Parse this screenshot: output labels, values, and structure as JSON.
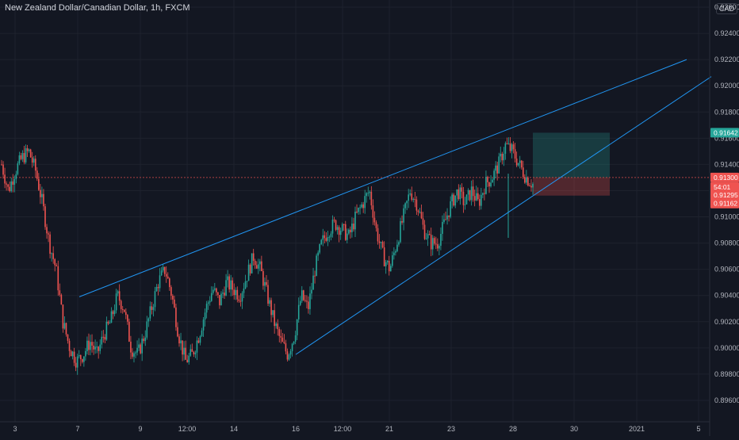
{
  "header": {
    "symbol_title": "New Zealand Dollar/Canadian Dollar, 1h, FXCM",
    "currency": "CAD"
  },
  "colors": {
    "background": "#131722",
    "up": "#26a69a",
    "down": "#ef5350",
    "trendline": "#2196f3",
    "target_zone": "#26a69a",
    "stop_zone": "#ef5350",
    "grid": "#1e222d"
  },
  "chart_data": {
    "type": "candlestick",
    "title": "New Zealand Dollar/Canadian Dollar, 1h, FXCM",
    "ylim": [
      0.895,
      0.927
    ],
    "y_ticks": [
      "0.92600",
      "0.92400",
      "0.92200",
      "0.92000",
      "0.91800",
      "0.91600",
      "0.91400",
      "0.91200",
      "0.91000",
      "0.90800",
      "0.90600",
      "0.90400",
      "0.90200",
      "0.90000",
      "0.89800",
      "0.89600"
    ],
    "x_ticks": [
      "3",
      "7",
      "9",
      "12:00",
      "14",
      "16",
      "12:00",
      "21",
      "23",
      "28",
      "30",
      "2021",
      "5"
    ],
    "grid": true,
    "series": [
      {
        "kind": "price_path",
        "close_values": [
          0.914,
          0.912,
          0.9135,
          0.9145,
          0.915,
          0.9135,
          0.911,
          0.908,
          0.906,
          0.902,
          0.9,
          0.899,
          0.8995,
          0.9005,
          0.8995,
          0.901,
          0.902,
          0.904,
          0.903,
          0.9,
          0.8995,
          0.901,
          0.903,
          0.905,
          0.906,
          0.904,
          0.901,
          0.899,
          0.8995,
          0.901,
          0.903,
          0.9045,
          0.9035,
          0.905,
          0.9045,
          0.904,
          0.9055,
          0.907,
          0.906,
          0.904,
          0.902,
          0.9005,
          0.8995,
          0.901,
          0.904,
          0.903,
          0.906,
          0.908,
          0.909,
          0.9095,
          0.909,
          0.9085,
          0.91,
          0.911,
          0.912,
          0.909,
          0.907,
          0.906,
          0.908,
          0.91,
          0.912,
          0.911,
          0.909,
          0.908,
          0.908,
          0.9095,
          0.911,
          0.912,
          0.911,
          0.912,
          0.911,
          0.9125,
          0.913,
          0.914,
          0.9155,
          0.915,
          0.914,
          0.913,
          0.9125
        ]
      }
    ],
    "trendlines": [
      {
        "name": "upper-resistance",
        "from": [
          7,
          0.9039
        ],
        "to": [
          5,
          0.922
        ]
      },
      {
        "name": "lower-support",
        "from": [
          16,
          0.8995
        ],
        "to": [
          5,
          0.9207
        ]
      }
    ],
    "position": {
      "type": "long",
      "target": 0.91642,
      "entry": 0.913,
      "stop": 0.91162
    },
    "price_labels": [
      {
        "label": "0.91642",
        "kind": "target"
      },
      {
        "label": "0.91300",
        "kind": "entry"
      },
      {
        "label": "54:01",
        "kind": "countdown"
      },
      {
        "label": "0.91295",
        "kind": "last"
      },
      {
        "label": "0.91162",
        "kind": "stop"
      }
    ]
  }
}
